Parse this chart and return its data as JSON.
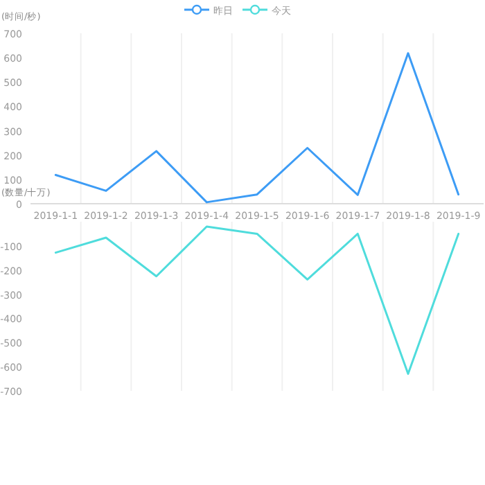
{
  "chart_data": [
    {
      "type": "line",
      "ylabel": "(时间/秒)",
      "categories": [
        "2019-1-1",
        "2019-1-2",
        "2019-1-3",
        "2019-1-4",
        "2019-1-5",
        "2019-1-6",
        "2019-1-7",
        "2019-1-8",
        "2019-1-9"
      ],
      "series": [
        {
          "name": "昨日",
          "color": "#3d9cf5",
          "values": [
            118,
            53,
            216,
            6,
            38,
            229,
            36,
            618,
            38
          ]
        }
      ],
      "ylim": [
        0,
        700
      ],
      "yticks": [
        0,
        100,
        200,
        300,
        400,
        500,
        600,
        700
      ],
      "grid": "x",
      "legend": "top",
      "marker": "none",
      "line_style": "solid"
    },
    {
      "type": "line",
      "ylabel": "(数量/十万)",
      "categories": [
        "2019-1-1",
        "2019-1-2",
        "2019-1-3",
        "2019-1-4",
        "2019-1-5",
        "2019-1-6",
        "2019-1-7",
        "2019-1-8",
        "2019-1-9"
      ],
      "series": [
        {
          "name": "今天",
          "color": "#4fdcdc",
          "values": [
            -128,
            -66,
            -226,
            -20,
            -50,
            -239,
            -50,
            -630,
            -50
          ]
        }
      ],
      "ylim": [
        -700,
        0
      ],
      "yticks": [
        -100,
        -200,
        -300,
        -400,
        -500,
        -600,
        -700
      ],
      "grid": "x",
      "legend": "top",
      "marker": "none",
      "line_style": "solid",
      "tick_labels": "y"
    }
  ]
}
